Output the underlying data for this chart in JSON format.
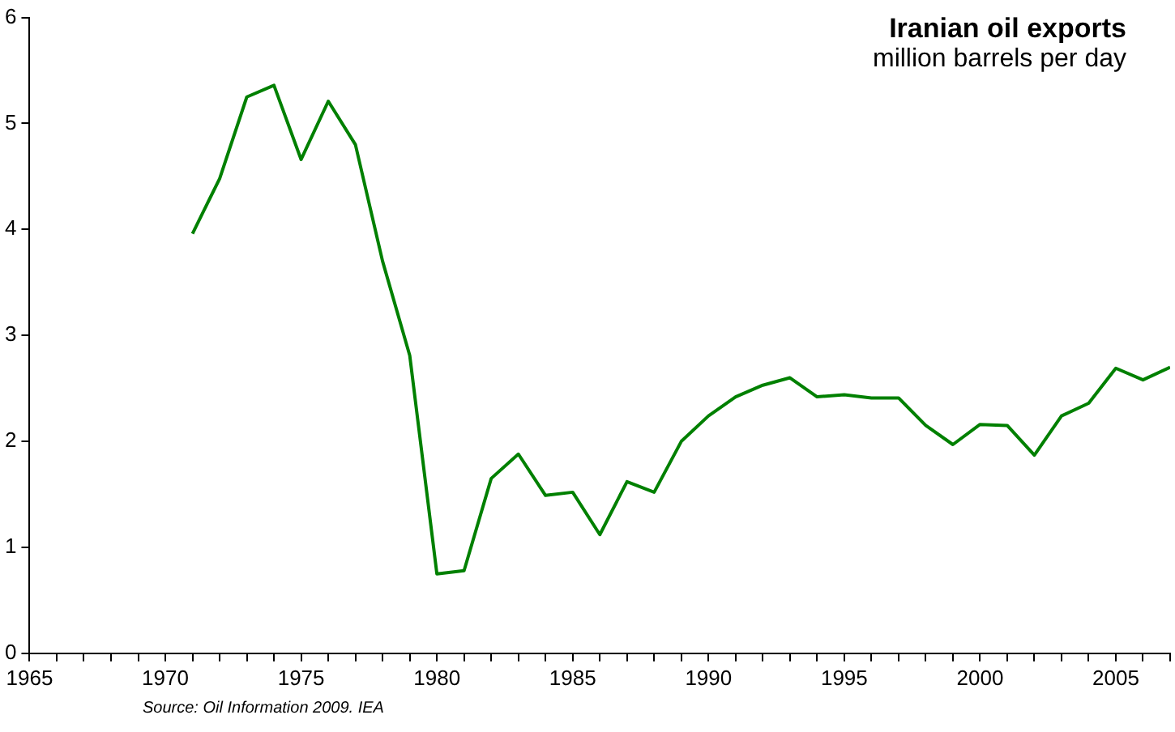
{
  "chart_data": {
    "type": "line",
    "title": "Iranian oil exports",
    "subtitle": "million barrels per day",
    "annotations": [
      "Source: Oil Information 2009. IEA"
    ],
    "x": [
      1971,
      1972,
      1973,
      1974,
      1975,
      1976,
      1977,
      1978,
      1979,
      1980,
      1981,
      1982,
      1983,
      1984,
      1985,
      1986,
      1987,
      1988,
      1989,
      1990,
      1991,
      1992,
      1993,
      1994,
      1995,
      1996,
      1997,
      1998,
      1999,
      2000,
      2001,
      2002,
      2003,
      2004,
      2005,
      2006,
      2007
    ],
    "series": [
      {
        "color": "#008000",
        "values": [
          3.96,
          4.48,
          5.25,
          5.36,
          4.66,
          5.21,
          4.8,
          3.7,
          2.81,
          0.75,
          0.78,
          1.65,
          1.88,
          1.49,
          1.52,
          1.12,
          1.62,
          1.52,
          2.0,
          2.24,
          2.42,
          2.53,
          2.6,
          2.42,
          2.44,
          2.41,
          2.41,
          2.15,
          1.97,
          2.16,
          2.15,
          1.87,
          2.24,
          2.36,
          2.69,
          2.58,
          2.7
        ]
      }
    ],
    "xlim": [
      1965,
      2007
    ],
    "ylim": [
      0,
      6
    ],
    "yticks": [
      0,
      1,
      2,
      3,
      4,
      5,
      6
    ],
    "xticks": [
      1965,
      {
        "value": 1966,
        "label": null
      },
      {
        "value": 1967,
        "label": null
      },
      {
        "value": 1968,
        "label": null
      },
      {
        "value": 1969,
        "label": null
      },
      1970,
      {
        "value": 1971,
        "label": null
      },
      {
        "value": 1972,
        "label": null
      },
      {
        "value": 1973,
        "label": null
      },
      {
        "value": 1974,
        "label": null
      },
      1975,
      {
        "value": 1976,
        "label": null
      },
      {
        "value": 1977,
        "label": null
      },
      {
        "value": 1978,
        "label": null
      },
      {
        "value": 1979,
        "label": null
      },
      1980,
      {
        "value": 1981,
        "label": null
      },
      {
        "value": 1982,
        "label": null
      },
      {
        "value": 1983,
        "label": null
      },
      {
        "value": 1984,
        "label": null
      },
      1985,
      {
        "value": 1986,
        "label": null
      },
      {
        "value": 1987,
        "label": null
      },
      {
        "value": 1988,
        "label": null
      },
      {
        "value": 1989,
        "label": null
      },
      1990,
      {
        "value": 1991,
        "label": null
      },
      {
        "value": 1992,
        "label": null
      },
      {
        "value": 1993,
        "label": null
      },
      {
        "value": 1994,
        "label": null
      },
      1995,
      {
        "value": 1996,
        "label": null
      },
      {
        "value": 1997,
        "label": null
      },
      {
        "value": 1998,
        "label": null
      },
      {
        "value": 1999,
        "label": null
      },
      2000,
      {
        "value": 2001,
        "label": null
      },
      {
        "value": 2002,
        "label": null
      },
      {
        "value": 2003,
        "label": null
      },
      {
        "value": 2004,
        "label": null
      },
      2005,
      {
        "value": 2006,
        "label": null
      },
      {
        "value": 2007,
        "label": null
      }
    ],
    "grid": false,
    "legend": false,
    "marker": "none",
    "line_style": "solid"
  }
}
